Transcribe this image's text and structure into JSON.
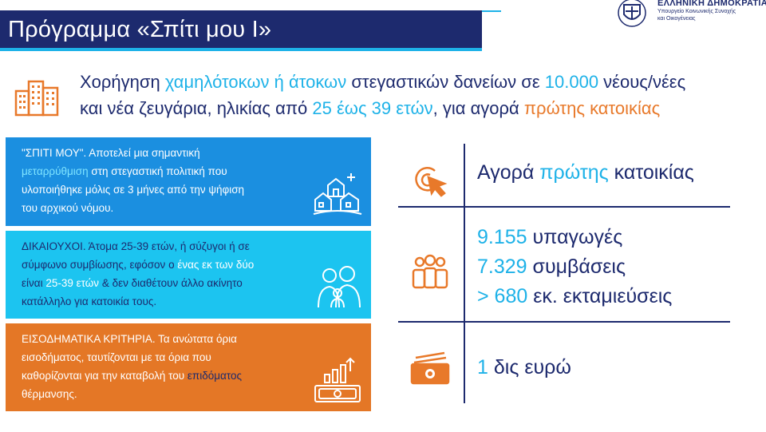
{
  "title": "Πρόγραμμα «Σπίτι μου Ι»",
  "gov": {
    "name": "ΕΛΛΗΝΙΚΗ ΔΗΜΟΚΡΑΤΙΑ",
    "ministry_line1": "Υπουργείο Κοινωνικής Συνοχής",
    "ministry_line2": "και Οικογένειας"
  },
  "headline": {
    "l1_a": "Χορήγηση ",
    "l1_b": "χαμηλότοκων ή άτοκων",
    "l1_c": " στεγαστικών δανείων σε ",
    "l1_d": "10.000",
    "l1_e": " νέους/νέες",
    "l2_a": "και νέα ζευγάρια, ηλικίας από ",
    "l2_b": "25 έως 39 ετών",
    "l2_c": ", για αγορά ",
    "l2_d": "πρώτης κατοικίας"
  },
  "panel1": {
    "t1": "\"ΣΠΙΤΙ ΜΟΥ\". Αποτελεί μια σημαντική",
    "t2_hl": "μεταρρύθμιση",
    "t2_rest": " στη στεγαστική πολιτική που",
    "t3": "υλοποιήθηκε μόλις σε 3 μήνες από την ψήφιση",
    "t4": "του αρχικού νόμου."
  },
  "panel2": {
    "t1": "ΔΙΚΑΙΟΥΧΟΙ. Άτομα 25-39 ετών, ή σύζυγοι ή σε",
    "t2_a": "σύμφωνο συμβίωσης, εφόσον ο ",
    "t2_hl": "ένας εκ των δύο",
    "t3_a": "είναι ",
    "t3_hl": "25-39 ετών",
    "t3_rest": " & δεν διαθέτουν άλλο ακίνητο",
    "t4": "κατάλληλο για κατοικία τους."
  },
  "panel3": {
    "t1": "ΕΙΣΟΔΗΜΑΤΙΚΑ ΚΡΙΤΗΡΙΑ. Τα ανώτατα όρια",
    "t2": "εισοδήματος, ταυτίζονται με τα όρια που",
    "t3_a": "καθορίζονται για την καταβολή του ",
    "t3_hl": "επιδόματος",
    "t4": "θέρμανσης."
  },
  "stats": {
    "s1_a": "Αγορά ",
    "s1_hl": "πρώτης",
    "s1_b": " κατοικίας",
    "s2_num": "9.155",
    "s2_label": " υπαγωγές",
    "s3_num": "7.329",
    "s3_label": " συμβάσεις",
    "s4_num": "> 680",
    "s4_label": " εκ. εκταμιεύσεις",
    "s5_num": "1",
    "s5_label": " δις ευρώ"
  },
  "colors": {
    "navy": "#1d2a6e",
    "blue": "#1eb2e8",
    "orange": "#e8792a",
    "panel_blue": "#1b8fe0",
    "panel_cyan": "#1cc4f0",
    "panel_orange": "#e47726"
  },
  "icons": [
    "buildings-icon",
    "village-icon",
    "family-icon",
    "money-growth-icon",
    "click-target-icon",
    "people-group-icon",
    "banknote-icon",
    "greek-emblem-icon"
  ]
}
